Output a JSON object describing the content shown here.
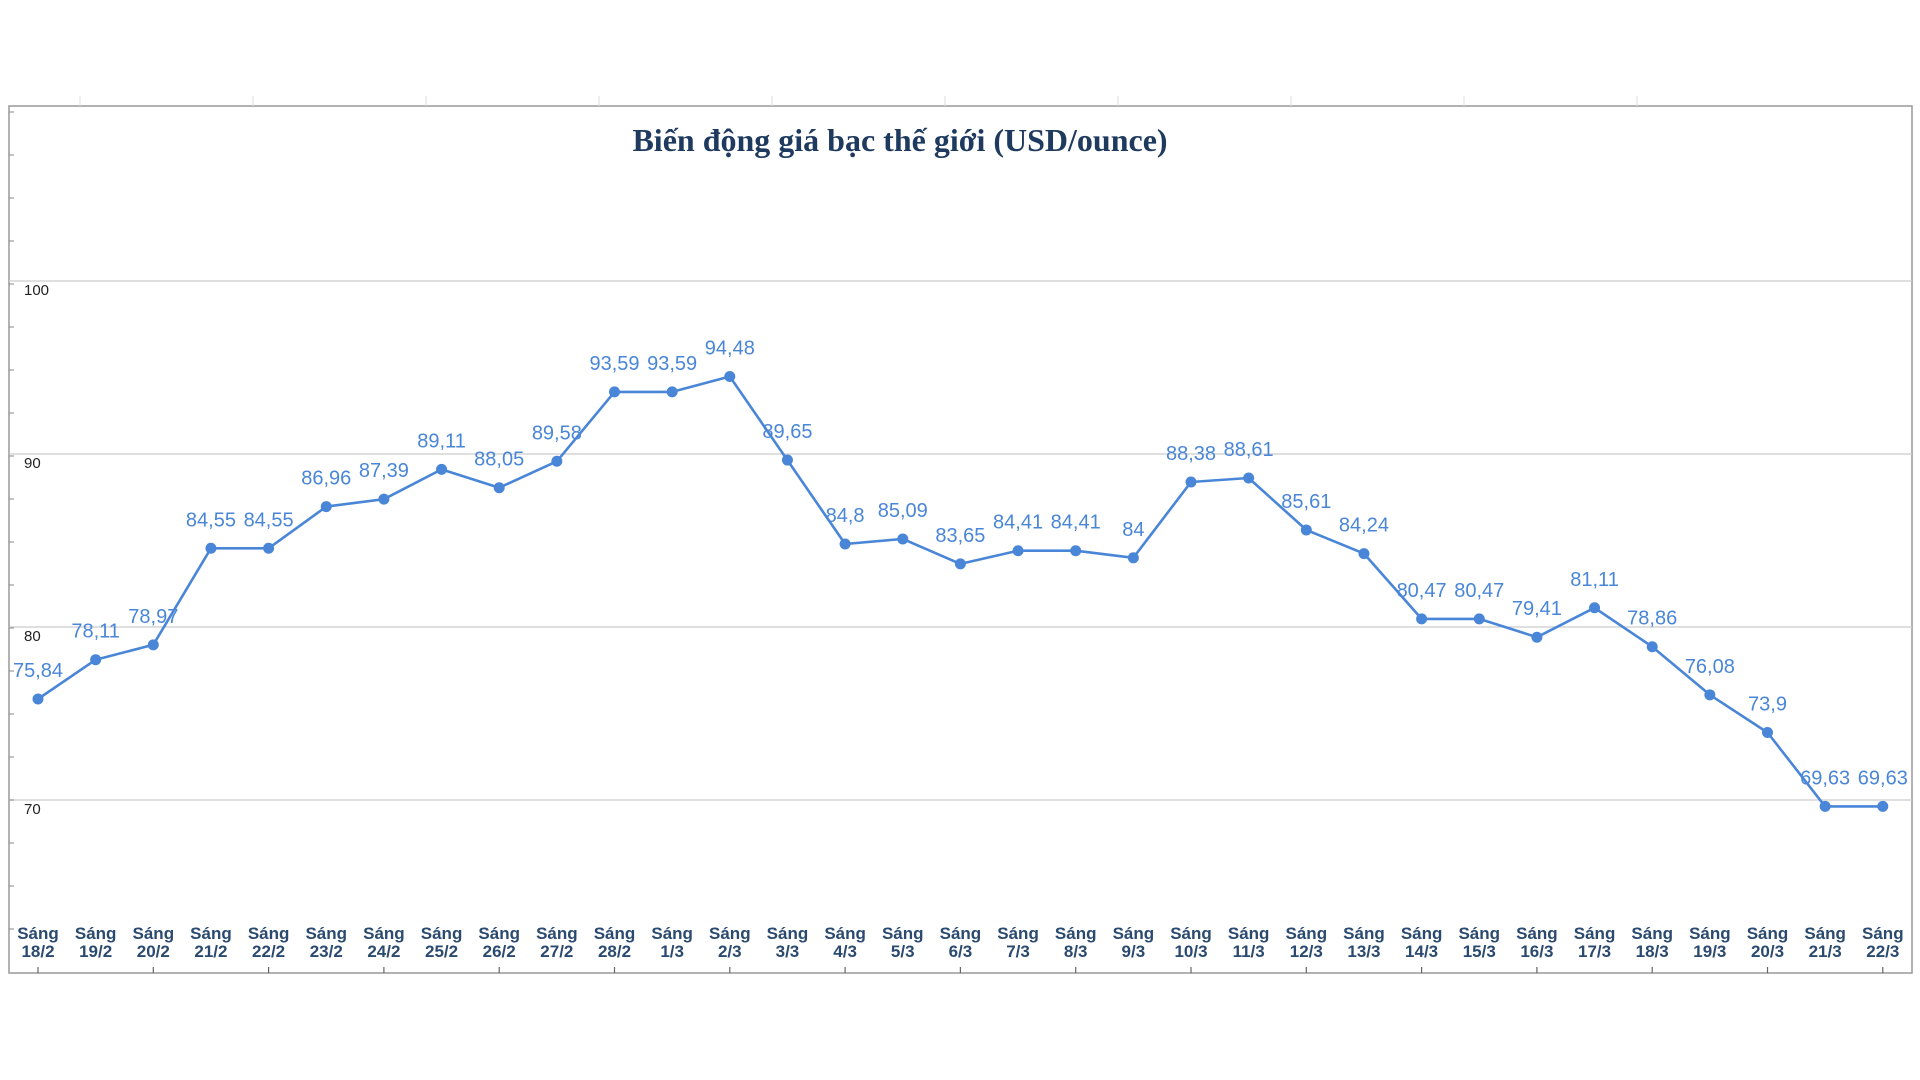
{
  "chart_data": {
    "type": "line",
    "title": "Biến động giá bạc thế giới (USD/ounce)",
    "xlabel": "",
    "ylabel": "",
    "ylim": [
      60,
      110
    ],
    "yticks": [
      70,
      80,
      90,
      100
    ],
    "grid": true,
    "categories": [
      [
        "Sáng",
        "18/2"
      ],
      [
        "Sáng",
        "19/2"
      ],
      [
        "Sáng",
        "20/2"
      ],
      [
        "Sáng",
        "21/2"
      ],
      [
        "Sáng",
        "22/2"
      ],
      [
        "Sáng",
        "23/2"
      ],
      [
        "Sáng",
        "24/2"
      ],
      [
        "Sáng",
        "25/2"
      ],
      [
        "Sáng",
        "26/2"
      ],
      [
        "Sáng",
        "27/2"
      ],
      [
        "Sáng",
        "28/2"
      ],
      [
        "Sáng",
        "1/3"
      ],
      [
        "Sáng",
        "2/3"
      ],
      [
        "Sáng",
        "3/3"
      ],
      [
        "Sáng",
        "4/3"
      ],
      [
        "Sáng",
        "5/3"
      ],
      [
        "Sáng",
        "6/3"
      ],
      [
        "Sáng",
        "7/3"
      ],
      [
        "Sáng",
        "8/3"
      ],
      [
        "Sáng",
        "9/3"
      ],
      [
        "Sáng",
        "10/3"
      ],
      [
        "Sáng",
        "11/3"
      ],
      [
        "Sáng",
        "12/3"
      ],
      [
        "Sáng",
        "13/3"
      ],
      [
        "Sáng",
        "14/3"
      ],
      [
        "Sáng",
        "15/3"
      ],
      [
        "Sáng",
        "16/3"
      ],
      [
        "Sáng",
        "17/3"
      ],
      [
        "Sáng",
        "18/3"
      ],
      [
        "Sáng",
        "19/3"
      ],
      [
        "Sáng",
        "20/3"
      ],
      [
        "Sáng",
        "21/3"
      ],
      [
        "Sáng",
        "22/3"
      ]
    ],
    "values": [
      75.84,
      78.11,
      78.97,
      84.55,
      84.55,
      86.96,
      87.39,
      89.11,
      88.05,
      89.58,
      93.59,
      93.59,
      94.48,
      89.65,
      84.8,
      85.09,
      83.65,
      84.41,
      84.41,
      84,
      88.38,
      88.61,
      85.61,
      84.24,
      80.47,
      80.47,
      79.41,
      81.11,
      78.86,
      76.08,
      73.9,
      69.63,
      69.63
    ],
    "labels": [
      "75,84",
      "78,11",
      "78,97",
      "84,55",
      "84,55",
      "86,96",
      "87,39",
      "89,11",
      "88,05",
      "89,58",
      "93,59",
      "93,59",
      "94,48",
      "89,65",
      "84,8",
      "85,09",
      "83,65",
      "84,41",
      "84,41",
      "84",
      "88,38",
      "88,61",
      "85,61",
      "84,24",
      "80,47",
      "80,47",
      "79,41",
      "81,11",
      "78,86",
      "76,08",
      "73,9",
      "69,63",
      "69,63"
    ],
    "colors": {
      "line": "#4a86d8",
      "label": "#4a86d8",
      "title": "#1f3a5f",
      "grid": "#cccccc",
      "frame": "#999999"
    }
  }
}
